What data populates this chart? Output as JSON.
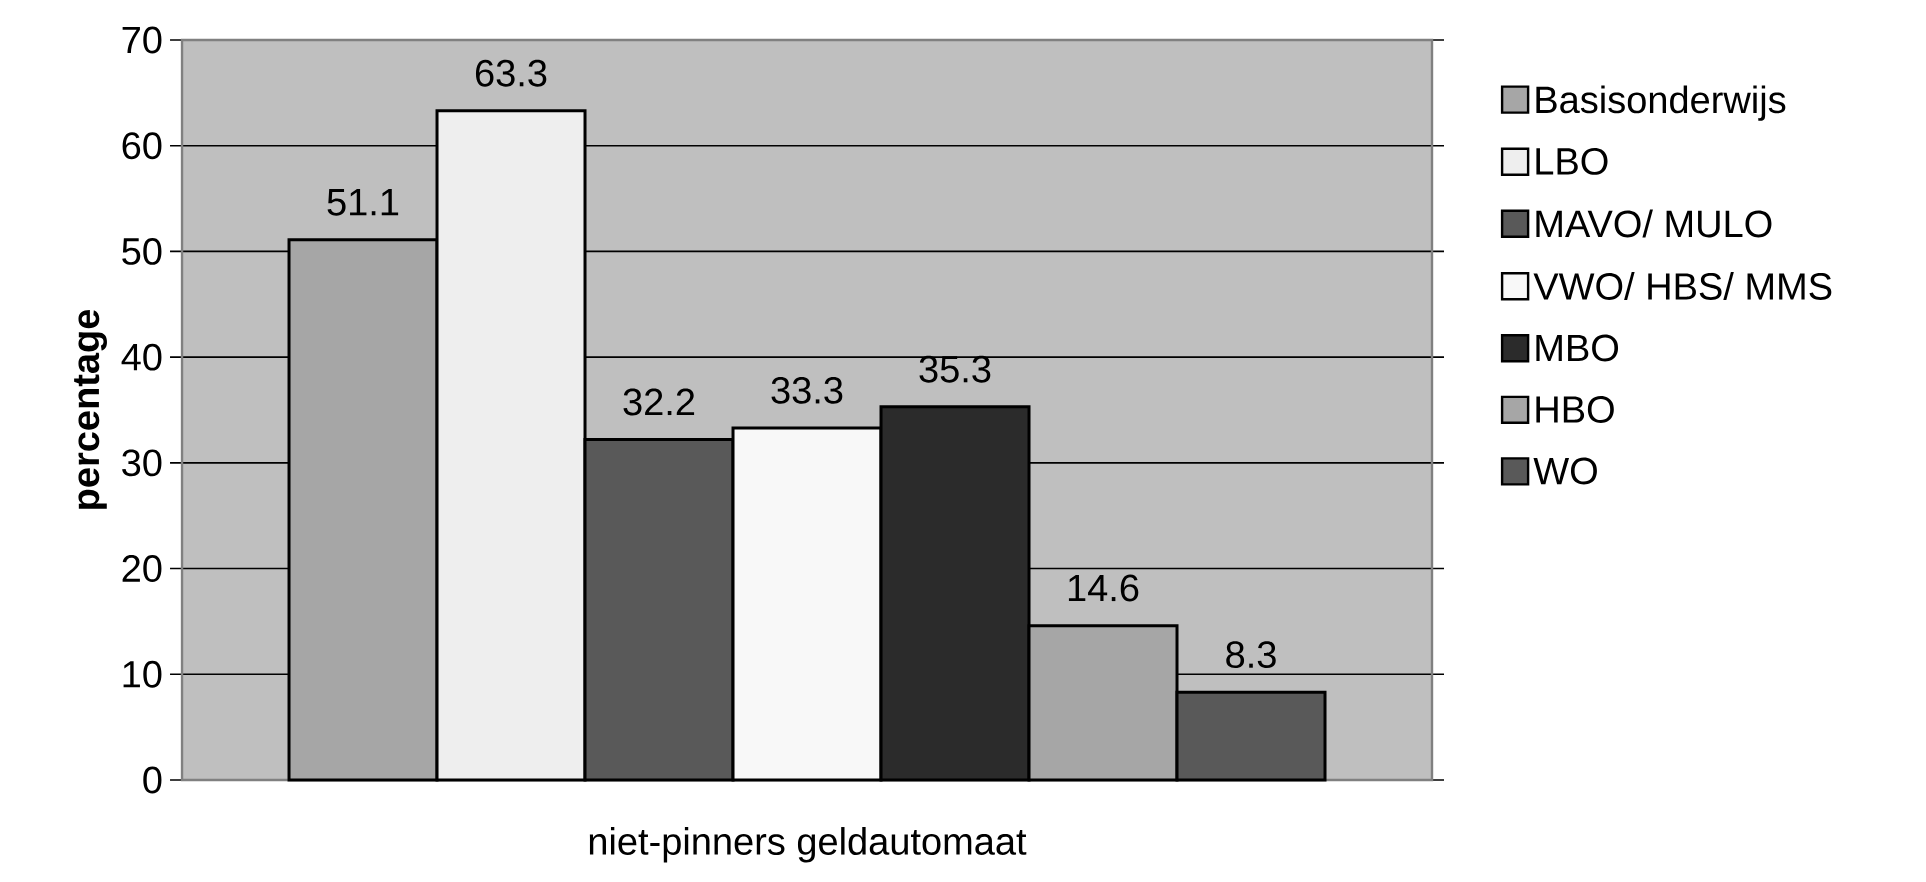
{
  "chart_data": {
    "type": "bar",
    "categories": [
      "niet-pinners geldautomaat"
    ],
    "ylabel": "percentage",
    "series": [
      {
        "name": "Basisonderwijs",
        "color": "#a6a6a6",
        "values": [
          51.1
        ]
      },
      {
        "name": "LBO",
        "color": "#eeeeee",
        "values": [
          63.3
        ]
      },
      {
        "name": "MAVO/ MULO",
        "color": "#595959",
        "values": [
          32.2
        ]
      },
      {
        "name": "VWO/ HBS/ MMS",
        "color": "#f8f8f8",
        "values": [
          33.3
        ]
      },
      {
        "name": "MBO",
        "color": "#2b2b2b",
        "values": [
          35.3
        ]
      },
      {
        "name": "HBO",
        "color": "#a6a6a6",
        "values": [
          14.6
        ]
      },
      {
        "name": "WO",
        "color": "#595959",
        "values": [
          8.3
        ]
      }
    ],
    "ylim": [
      0,
      70
    ],
    "yticks": [
      0,
      10,
      20,
      30,
      40,
      50,
      60,
      70
    ],
    "grid": "y",
    "legend": "right",
    "data_labels": true
  }
}
